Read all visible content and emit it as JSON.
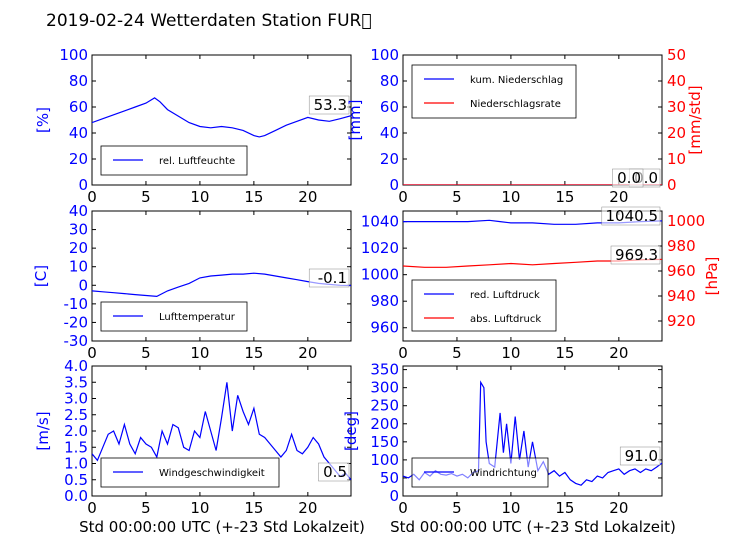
{
  "figure_title": "2019-02-24 Wetterdaten Station FUR\u0000",
  "xlabel": "Std 00:00:00 UTC (+-23 Std Lokalzeit)",
  "colors": {
    "primary": "#0000ff",
    "secondary": "#ff0000",
    "light": "#8080ff",
    "text": "#000000"
  },
  "chart_data": [
    {
      "type": "line",
      "ylabel": "[%]",
      "xlim": [
        0,
        24
      ],
      "ylim": [
        0,
        100
      ],
      "xticks": [
        0,
        5,
        10,
        15,
        20
      ],
      "yticks": [
        0,
        20,
        40,
        60,
        80,
        100
      ],
      "legend_position": "lower-left",
      "value_label": "53.3",
      "series": [
        {
          "name": "rel. Luftfeuchte",
          "color": "#0000ff",
          "x": [
            0,
            1,
            2,
            3,
            4,
            5,
            5.8,
            6.3,
            7,
            8,
            9,
            10,
            11,
            12,
            13,
            14,
            15,
            15.5,
            16,
            17,
            18,
            19,
            20,
            21,
            22,
            23,
            24
          ],
          "y": [
            48,
            51,
            54,
            57,
            60,
            63,
            67,
            64,
            58,
            53,
            48,
            45,
            44,
            45,
            44,
            42,
            38,
            37,
            38,
            42,
            46,
            49,
            52,
            50,
            49,
            51,
            53.3
          ]
        }
      ]
    },
    {
      "type": "line",
      "ylabel": "[mm]",
      "y2label": "[mm/std]",
      "xlim": [
        0,
        24
      ],
      "ylim": [
        0,
        100
      ],
      "y2lim": [
        0,
        50
      ],
      "xticks": [
        0,
        5,
        10,
        15,
        20
      ],
      "yticks": [
        0,
        20,
        40,
        60,
        80,
        100
      ],
      "y2ticks": [
        0,
        10,
        20,
        30,
        40,
        50
      ],
      "legend_position": "upper-left",
      "value_label": "0.0",
      "value_label_2": "0.0",
      "series": [
        {
          "name": "kum. Niederschlag",
          "color": "#0000ff",
          "axis": "left",
          "x": [
            0,
            24
          ],
          "y": [
            0,
            0
          ]
        },
        {
          "name": "Niederschlagsrate",
          "color": "#ff0000",
          "axis": "right",
          "x": [
            0,
            24
          ],
          "y": [
            0,
            0
          ]
        }
      ]
    },
    {
      "type": "line",
      "ylabel": "[C]",
      "xlim": [
        0,
        24
      ],
      "ylim": [
        -30,
        40
      ],
      "xticks": [
        0,
        5,
        10,
        15,
        20
      ],
      "yticks": [
        -30,
        -20,
        -10,
        0,
        10,
        20,
        30,
        40
      ],
      "legend_position": "lower-left",
      "value_label": "-0.1",
      "series": [
        {
          "name": "Lufttemperatur",
          "color": "#0000ff",
          "x": [
            0,
            1,
            2,
            3,
            4,
            5,
            6,
            7,
            8,
            9,
            10,
            11,
            12,
            13,
            14,
            15,
            16,
            17,
            18,
            19,
            20,
            21,
            22,
            23,
            24
          ],
          "y": [
            -3,
            -3.5,
            -4,
            -4.5,
            -5,
            -5.5,
            -6,
            -3,
            -1,
            1,
            4,
            5,
            5.5,
            6,
            6,
            6.5,
            6,
            5,
            4,
            3,
            2,
            1,
            0.5,
            0,
            -0.1
          ]
        }
      ]
    },
    {
      "type": "line",
      "ylabel": "",
      "y2label": "[hPa]",
      "xlim": [
        0,
        24
      ],
      "ylim": [
        950,
        1048
      ],
      "y2lim": [
        904,
        1008
      ],
      "xticks": [
        0,
        5,
        10,
        15,
        20
      ],
      "yticks": [
        960,
        980,
        1000,
        1020,
        1040
      ],
      "y2ticks": [
        920,
        940,
        960,
        980,
        1000
      ],
      "legend_position": "lower-left",
      "value_label": "1040.5",
      "value_label_2": "969.3",
      "series": [
        {
          "name": "red. Luftdruck",
          "color": "#0000ff",
          "axis": "left",
          "x": [
            0,
            2,
            4,
            6,
            8,
            9,
            10,
            12,
            14,
            16,
            18,
            20,
            22,
            24
          ],
          "y": [
            1040,
            1040,
            1040,
            1040,
            1041,
            1040,
            1039,
            1039,
            1038,
            1038,
            1039,
            1039,
            1040,
            1040.5
          ]
        },
        {
          "name": "abs. Luftdruck",
          "color": "#ff0000",
          "axis": "right",
          "x": [
            0,
            2,
            4,
            6,
            8,
            10,
            12,
            14,
            16,
            18,
            20,
            22,
            24
          ],
          "y": [
            964,
            963,
            963,
            964,
            965,
            966,
            965,
            966,
            967,
            968,
            968,
            969,
            969.3
          ]
        }
      ]
    },
    {
      "type": "line",
      "ylabel": "[m/s]",
      "xlim": [
        0,
        24
      ],
      "ylim": [
        0,
        4
      ],
      "xticks": [
        0,
        5,
        10,
        15,
        20
      ],
      "yticks": [
        0.0,
        0.5,
        1.0,
        1.5,
        2.0,
        2.5,
        3.0,
        3.5,
        4.0
      ],
      "legend_position": "lower-left",
      "value_label": "0.5",
      "series": [
        {
          "name": "Windgeschwindigkeit",
          "color": "#0000ff",
          "x": [
            0,
            0.5,
            1,
            1.5,
            2,
            2.5,
            3,
            3.5,
            4,
            4.5,
            5,
            5.5,
            6,
            6.5,
            7,
            7.5,
            8,
            8.5,
            9,
            9.5,
            10,
            10.5,
            11,
            11.5,
            12,
            12.5,
            13,
            13.5,
            14,
            14.5,
            15,
            15.5,
            16,
            16.5,
            17,
            17.5,
            18,
            18.5,
            19,
            19.5,
            20,
            20.5,
            21,
            21.5,
            22,
            22.5,
            23,
            23.5,
            24
          ],
          "y": [
            1.3,
            1.1,
            1.5,
            1.9,
            2.0,
            1.6,
            2.2,
            1.6,
            1.3,
            1.8,
            1.6,
            1.5,
            1.2,
            2.0,
            1.6,
            2.2,
            2.1,
            1.5,
            1.4,
            2.0,
            1.8,
            2.6,
            2.0,
            1.4,
            2.4,
            3.5,
            2.0,
            3.1,
            2.6,
            2.2,
            2.7,
            1.9,
            1.8,
            1.6,
            1.4,
            1.2,
            1.4,
            1.9,
            1.4,
            1.3,
            1.5,
            1.8,
            1.6,
            1.2,
            1.0,
            0.8,
            0.6,
            0.7,
            0.5
          ]
        }
      ]
    },
    {
      "type": "line",
      "ylabel": "[deg]",
      "xlim": [
        0,
        24
      ],
      "ylim": [
        0,
        360
      ],
      "xticks": [
        0,
        5,
        10,
        15,
        20
      ],
      "yticks": [
        0,
        50,
        100,
        150,
        200,
        250,
        300,
        350
      ],
      "legend_position": "lower-left",
      "value_label": "91.0",
      "series": [
        {
          "name": "Windrichtung",
          "color": "#0000ff",
          "x": [
            0,
            0.5,
            1,
            1.5,
            2,
            2.5,
            3,
            3.5,
            4,
            4.5,
            5,
            5.5,
            6,
            6.5,
            7,
            7.2,
            7.5,
            7.7,
            8,
            8.5,
            9,
            9.3,
            9.6,
            10,
            10.4,
            10.8,
            11.2,
            11.6,
            12,
            12.5,
            13,
            13.5,
            14,
            14.5,
            15,
            15.5,
            16,
            16.5,
            17,
            17.5,
            18,
            18.5,
            19,
            19.5,
            20,
            20.5,
            21,
            21.5,
            22,
            22.5,
            23,
            23.5,
            24
          ],
          "y": [
            55,
            50,
            60,
            45,
            65,
            55,
            70,
            60,
            58,
            62,
            55,
            60,
            50,
            65,
            70,
            315,
            300,
            150,
            90,
            80,
            230,
            120,
            200,
            90,
            220,
            100,
            180,
            80,
            150,
            70,
            95,
            60,
            70,
            55,
            65,
            45,
            35,
            30,
            45,
            40,
            55,
            50,
            65,
            70,
            75,
            60,
            70,
            75,
            65,
            75,
            70,
            80,
            91
          ]
        }
      ]
    }
  ]
}
